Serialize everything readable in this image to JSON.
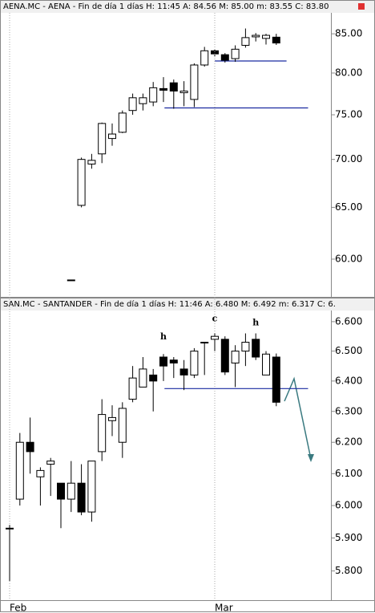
{
  "chart_data": [
    {
      "type": "candlestick",
      "title": "AENA.MC - AENA - Fin de día 1 días  H: 11:45  A: 84.56  M: 85.00  m: 83.55  C: 83.80",
      "log": true,
      "ylim": [
        56.6,
        87.8
      ],
      "yticks": [
        {
          "value": 85,
          "label": "85.00"
        },
        {
          "value": 80,
          "label": "80.00"
        },
        {
          "value": 75,
          "label": "75.00"
        },
        {
          "value": 70,
          "label": "70.00"
        },
        {
          "value": 65,
          "label": "65.00"
        },
        {
          "value": 60,
          "label": "60.00"
        }
      ],
      "categories": [
        null,
        null,
        null,
        null,
        null,
        null,
        null,
        null,
        null,
        null,
        null,
        null,
        null,
        null,
        null,
        null,
        null,
        null,
        null,
        null,
        null,
        null,
        null,
        null,
        null,
        null,
        null
      ],
      "open": [
        null,
        null,
        null,
        null,
        null,
        null,
        58.1,
        65.2,
        69.5,
        70.6,
        72.3,
        73.0,
        75.5,
        76.3,
        76.5,
        78.1,
        78.8,
        77.6,
        76.8,
        81.0,
        82.8,
        82.3,
        81.8,
        83.5,
        84.6,
        84.4,
        84.56
      ],
      "high": [
        null,
        null,
        null,
        null,
        null,
        null,
        58.1,
        70.2,
        70.6,
        74.1,
        74.0,
        75.5,
        77.5,
        77.5,
        78.9,
        79.5,
        79.2,
        79.0,
        81.2,
        83.3,
        83.0,
        82.5,
        83.5,
        85.7,
        85.1,
        85.0,
        85.0
      ],
      "low": [
        null,
        null,
        null,
        null,
        null,
        null,
        58.1,
        65.0,
        69.0,
        69.6,
        71.5,
        72.9,
        75.0,
        75.5,
        76.0,
        76.5,
        75.7,
        76.0,
        75.9,
        80.8,
        82.0,
        81.3,
        81.4,
        83.2,
        84.0,
        83.6,
        83.55
      ],
      "close": [
        null,
        null,
        null,
        null,
        null,
        null,
        58.1,
        70.0,
        69.9,
        74.0,
        72.8,
        75.2,
        77.0,
        77.0,
        78.2,
        77.9,
        77.8,
        77.8,
        81.0,
        82.8,
        82.4,
        81.6,
        83.0,
        84.5,
        84.8,
        84.8,
        83.8
      ],
      "hlines": [
        {
          "y": 81.5,
          "x0": 20,
          "x1": 27
        },
        {
          "y": 75.8,
          "x0": 15.1,
          "x1": 29.1
        }
      ],
      "annotations": []
    },
    {
      "type": "candlestick",
      "title": "SAN.MC - SANTANDER - Fin de día 1 días  H: 11:46  A: 6.480  M: 6.492  m: 6.317  C: 6.",
      "log": true,
      "ylim": [
        5.72,
        6.641
      ],
      "yticks": [
        {
          "value": 6.6,
          "label": "6.600"
        },
        {
          "value": 6.5,
          "label": "6.500"
        },
        {
          "value": 6.4,
          "label": "6.400"
        },
        {
          "value": 6.3,
          "label": "6.300"
        },
        {
          "value": 6.2,
          "label": "6.200"
        },
        {
          "value": 6.1,
          "label": "6.100"
        },
        {
          "value": 6,
          "label": "6.000"
        },
        {
          "value": 5.9,
          "label": "5.900"
        },
        {
          "value": 5.8,
          "label": "5.800"
        }
      ],
      "categories": [
        "Feb",
        null,
        null,
        null,
        null,
        null,
        null,
        null,
        null,
        null,
        null,
        null,
        null,
        null,
        null,
        null,
        null,
        null,
        null,
        null,
        "Mar",
        null,
        null,
        null,
        null,
        null,
        null
      ],
      "open": [
        5.93,
        6.02,
        6.2,
        6.09,
        6.13,
        6.07,
        6.02,
        6.07,
        5.98,
        6.17,
        6.27,
        6.2,
        6.34,
        6.38,
        6.42,
        6.48,
        6.47,
        6.44,
        6.42,
        6.53,
        6.54,
        6.54,
        6.46,
        6.5,
        6.54,
        6.42,
        6.48
      ],
      "high": [
        5.94,
        6.23,
        6.28,
        6.12,
        6.15,
        6.07,
        6.14,
        6.13,
        6.14,
        6.34,
        6.32,
        6.33,
        6.45,
        6.48,
        6.44,
        6.49,
        6.48,
        6.47,
        6.51,
        6.53,
        6.56,
        6.55,
        6.52,
        6.56,
        6.56,
        6.5,
        6.492
      ],
      "low": [
        5.77,
        6.0,
        6.1,
        6.0,
        6.03,
        5.93,
        5.98,
        5.97,
        5.95,
        6.14,
        6.22,
        6.15,
        6.33,
        6.38,
        6.3,
        6.4,
        6.41,
        6.37,
        6.41,
        6.42,
        6.5,
        6.42,
        6.38,
        6.45,
        6.47,
        6.42,
        6.317
      ],
      "close": [
        5.93,
        6.2,
        6.17,
        6.11,
        6.14,
        6.02,
        6.07,
        5.98,
        6.14,
        6.29,
        6.28,
        6.31,
        6.41,
        6.44,
        6.4,
        6.45,
        6.46,
        6.42,
        6.5,
        6.53,
        6.55,
        6.43,
        6.5,
        6.53,
        6.48,
        6.49,
        6.33
      ],
      "hlines": [
        {
          "y": 6.375,
          "x0": 15.1,
          "x1": 29.1
        }
      ],
      "annotations": [
        {
          "text": "h",
          "x": 15,
          "y": 6.548
        },
        {
          "text": "c",
          "x": 20,
          "y": 6.61
        },
        {
          "text": "h",
          "x": 24,
          "y": 6.595
        }
      ]
    }
  ]
}
